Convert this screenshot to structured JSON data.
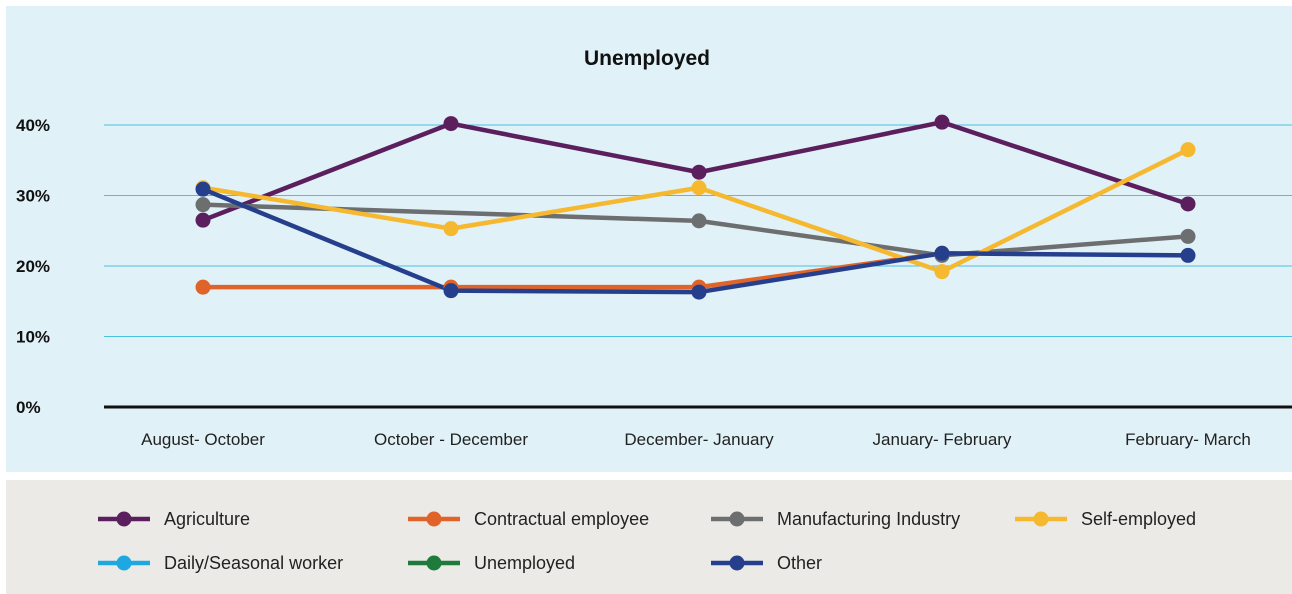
{
  "chart_data": {
    "type": "line",
    "title": "Unemployed",
    "xlabel": "",
    "ylabel": "",
    "categories": [
      "August- October",
      "October - December",
      "December- January",
      "January- February",
      "February- March"
    ],
    "ylim": [
      0,
      40
    ],
    "yticks": [
      "0%",
      "10%",
      "20%",
      "30%",
      "40%"
    ],
    "grid": true,
    "legend_position": "bottom",
    "series": [
      {
        "name": "Agriculture",
        "color": "#5b1f5e",
        "values": [
          26.5,
          40.2,
          33.3,
          40.4,
          28.8
        ]
      },
      {
        "name": "Contractual employee",
        "color": "#e0642a",
        "values": [
          17.0,
          17.0,
          17.0,
          21.8,
          null
        ]
      },
      {
        "name": "Manufacturing Industry",
        "color": "#6d6e70",
        "values": [
          28.7,
          null,
          26.4,
          21.5,
          24.2
        ]
      },
      {
        "name": "Self-employed",
        "color": "#f5b82e",
        "values": [
          31.1,
          25.3,
          31.1,
          19.2,
          36.5
        ]
      },
      {
        "name": "Daily/Seasonal worker",
        "color": "#1ea7e0",
        "values": [
          null,
          null,
          null,
          null,
          null
        ]
      },
      {
        "name": "Unemployed",
        "color": "#1e7b3c",
        "values": [
          null,
          null,
          null,
          null,
          null
        ]
      },
      {
        "name": "Other",
        "color": "#253f8c",
        "values": [
          30.9,
          16.5,
          16.3,
          21.8,
          21.5
        ]
      }
    ]
  }
}
